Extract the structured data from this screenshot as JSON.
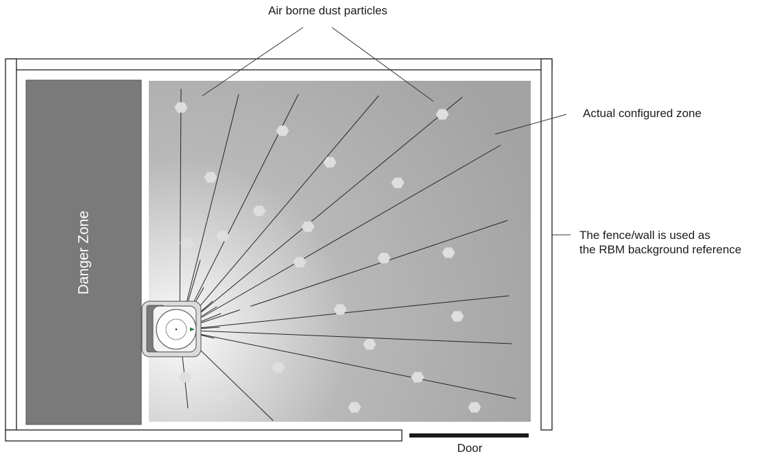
{
  "labels": {
    "dust": "Air borne dust particles",
    "zone": "Actual configured zone",
    "fence_line1": "The fence/wall is used as",
    "fence_line2": "the RBM background reference",
    "danger": "Danger Zone",
    "door": "Door"
  },
  "colors": {
    "danger_fill": "#7a7a7a",
    "zone_fill": "#a6a6a6",
    "particle": "#dedede",
    "door": "#1a1a1a",
    "sensor_marker": "#2e7d4f"
  },
  "diagram": {
    "particle_count": 24,
    "ray_count": 19
  }
}
